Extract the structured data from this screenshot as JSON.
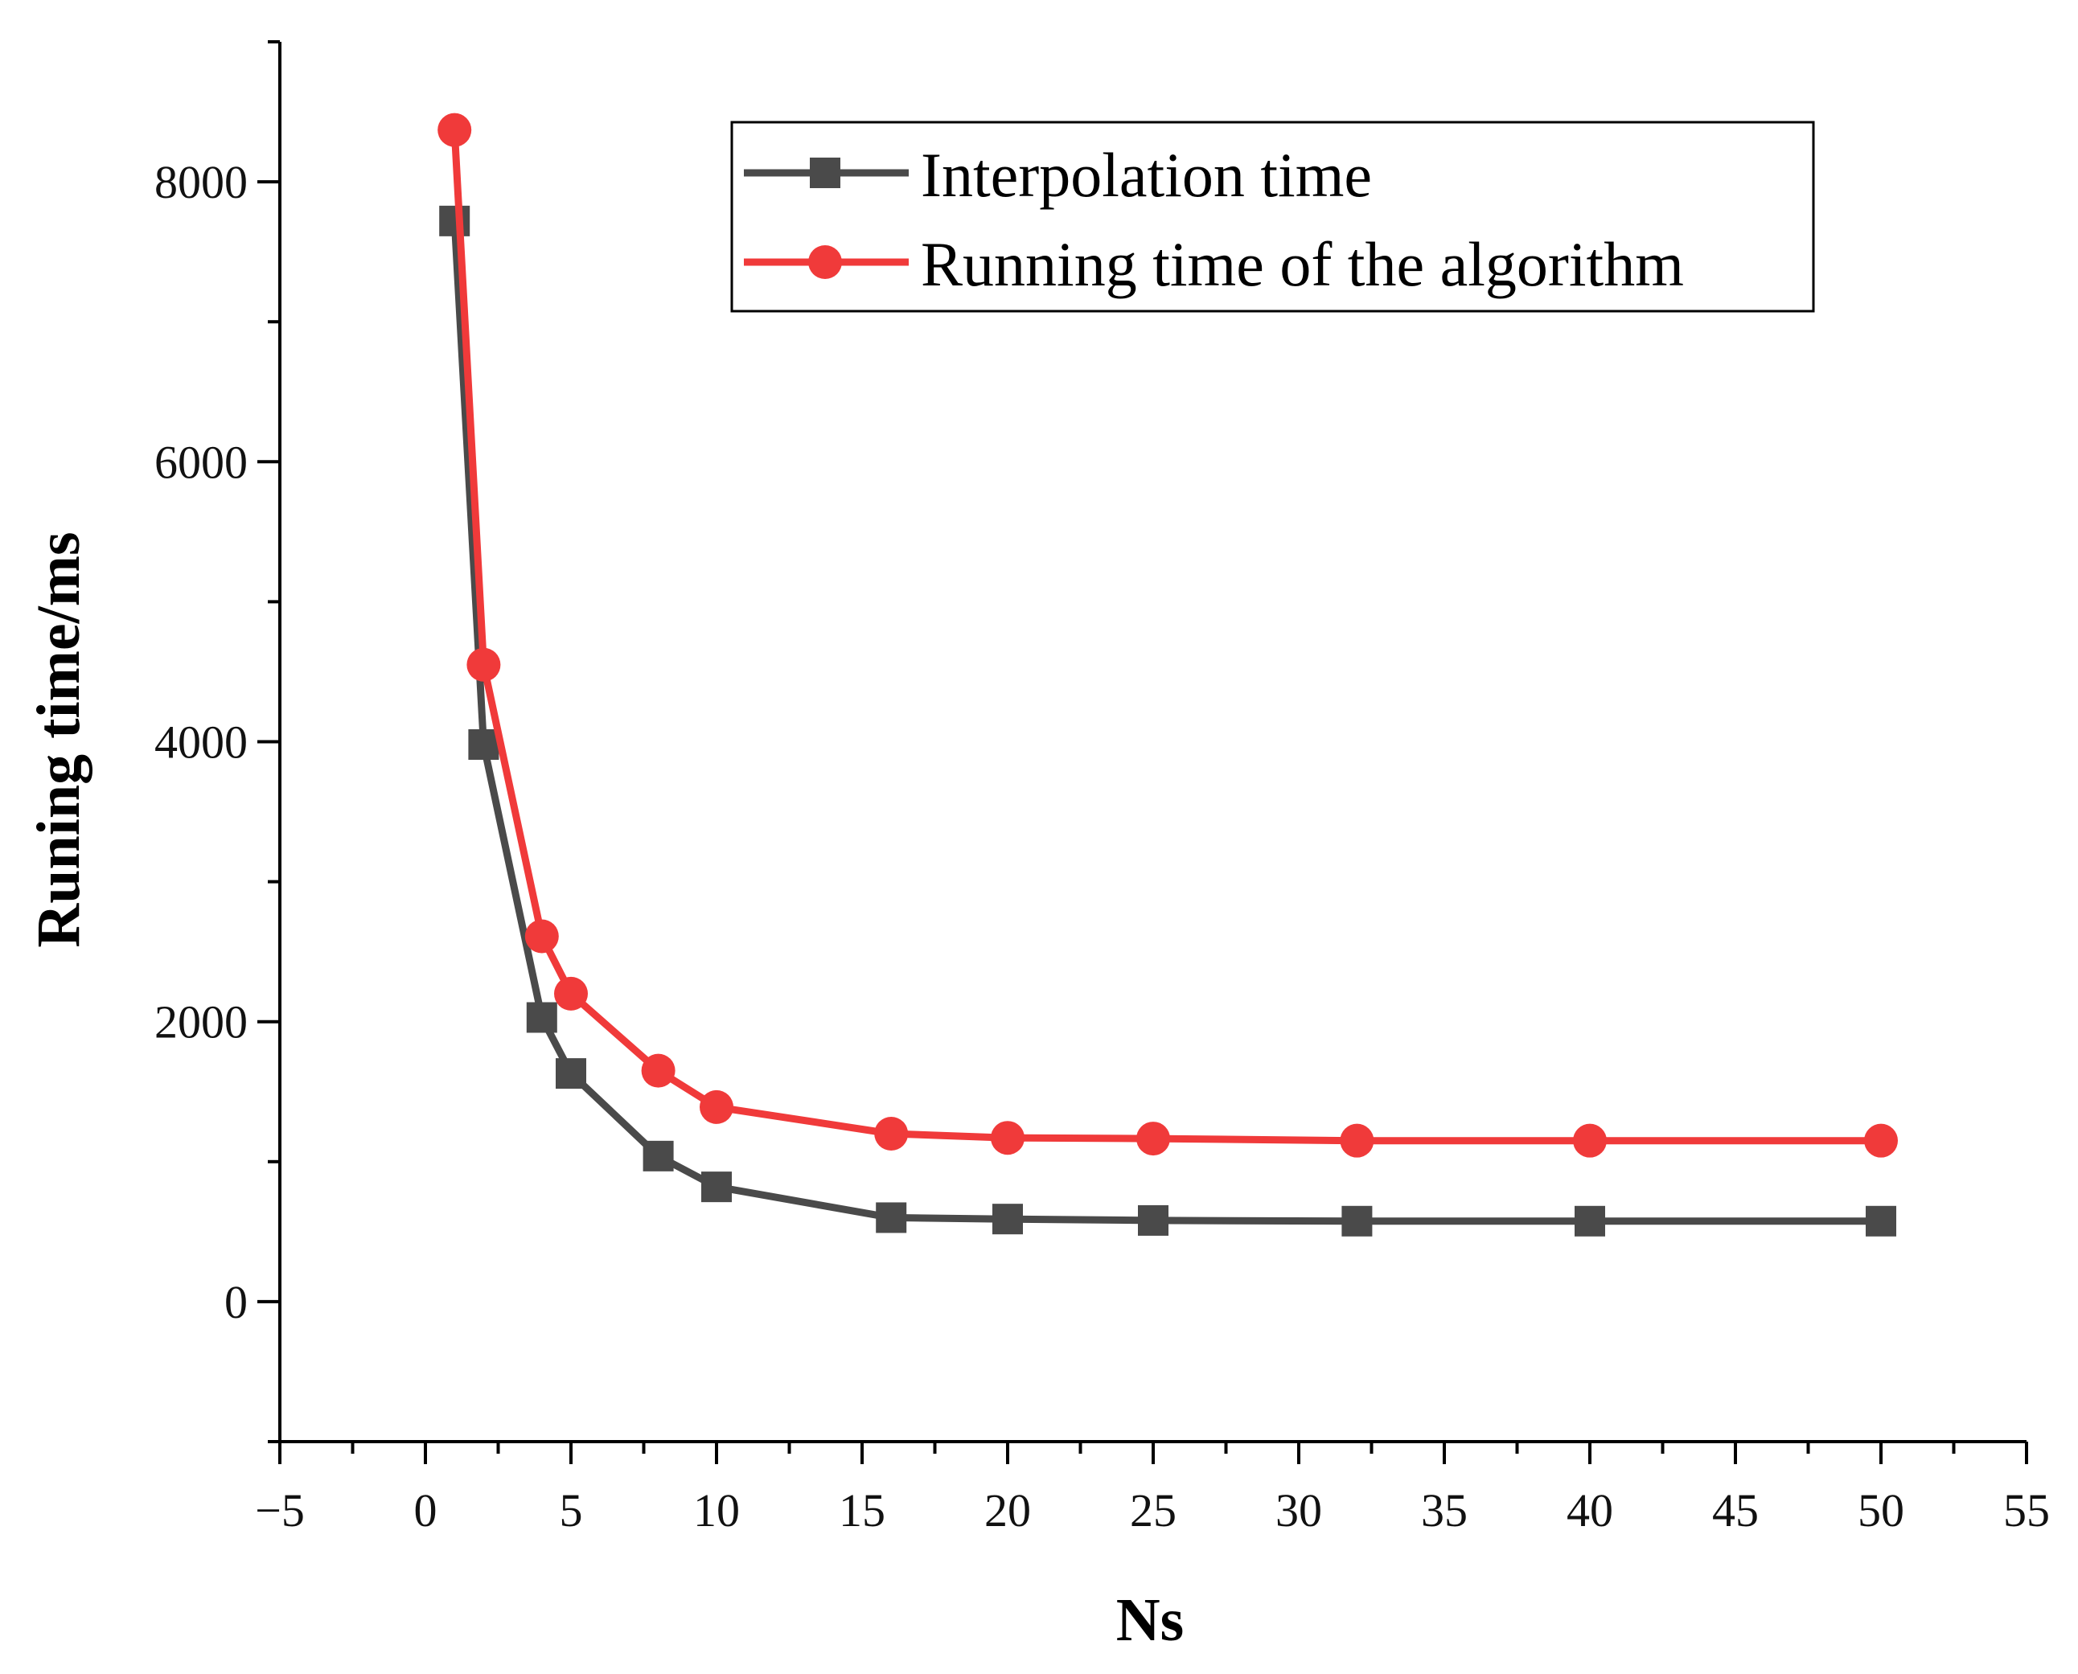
{
  "chart_data": {
    "type": "line",
    "title": "",
    "xlabel": "Ns",
    "ylabel": "Runing time/ms",
    "xlim": [
      -5,
      55
    ],
    "ylim": [
      -1000,
      9000
    ],
    "xticks": [
      -5,
      0,
      5,
      10,
      15,
      20,
      25,
      30,
      35,
      40,
      45,
      50,
      55
    ],
    "xtick_labels": [
      "−5",
      "0",
      "5",
      "10",
      "15",
      "20",
      "25",
      "30",
      "35",
      "40",
      "45",
      "50",
      "55"
    ],
    "yticks": [
      0,
      2000,
      4000,
      6000,
      8000
    ],
    "ytick_labels": [
      "0",
      "2000",
      "4000",
      "6000",
      "8000"
    ],
    "grid": false,
    "legend_position": "top-right",
    "x": [
      1,
      2,
      4,
      5,
      8,
      10,
      16,
      20,
      25,
      32,
      40,
      50
    ],
    "series": [
      {
        "name": "Interpolation time",
        "color": "#4a4a4a",
        "marker": "square",
        "values": [
          7720,
          3980,
          2030,
          1630,
          1040,
          820,
          600,
          590,
          580,
          575,
          575,
          575
        ]
      },
      {
        "name": "Running time of the algorithm",
        "color": "#f03a3a",
        "marker": "circle",
        "values": [
          8370,
          4550,
          2610,
          2200,
          1650,
          1390,
          1200,
          1170,
          1165,
          1150,
          1150,
          1150
        ]
      }
    ]
  }
}
